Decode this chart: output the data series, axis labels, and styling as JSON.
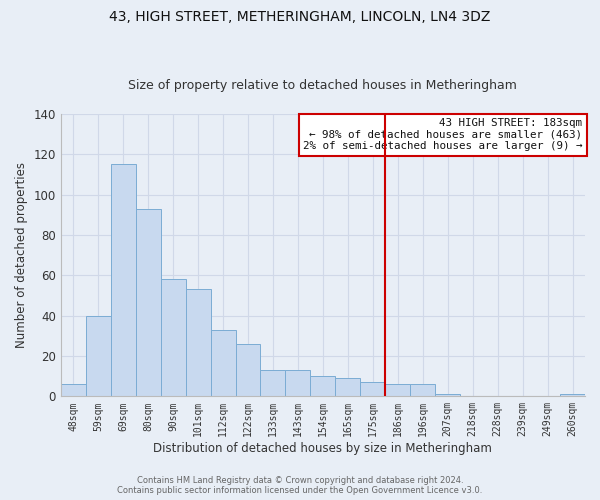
{
  "title": "43, HIGH STREET, METHERINGHAM, LINCOLN, LN4 3DZ",
  "subtitle": "Size of property relative to detached houses in Metheringham",
  "xlabel": "Distribution of detached houses by size in Metheringham",
  "ylabel": "Number of detached properties",
  "categories": [
    "48sqm",
    "59sqm",
    "69sqm",
    "80sqm",
    "90sqm",
    "101sqm",
    "112sqm",
    "122sqm",
    "133sqm",
    "143sqm",
    "154sqm",
    "165sqm",
    "175sqm",
    "186sqm",
    "196sqm",
    "207sqm",
    "218sqm",
    "228sqm",
    "239sqm",
    "249sqm",
    "260sqm"
  ],
  "values": [
    6,
    40,
    115,
    93,
    58,
    53,
    33,
    26,
    13,
    13,
    10,
    9,
    7,
    6,
    6,
    1,
    0,
    0,
    0,
    0,
    1
  ],
  "bar_color": "#c8d9ef",
  "bar_edge_color": "#7bacd4",
  "background_color": "#e8eef6",
  "grid_color": "#d0d8e8",
  "vline_x_index": 13,
  "vline_color": "#cc0000",
  "ylim": [
    0,
    140
  ],
  "yticks": [
    0,
    20,
    40,
    60,
    80,
    100,
    120,
    140
  ],
  "annotation_title": "43 HIGH STREET: 183sqm",
  "annotation_line1": "← 98% of detached houses are smaller (463)",
  "annotation_line2": "2% of semi-detached houses are larger (9) →",
  "annotation_box_color": "#ffffff",
  "annotation_border_color": "#cc0000",
  "footer1": "Contains HM Land Registry data © Crown copyright and database right 2024.",
  "footer2": "Contains public sector information licensed under the Open Government Licence v3.0."
}
